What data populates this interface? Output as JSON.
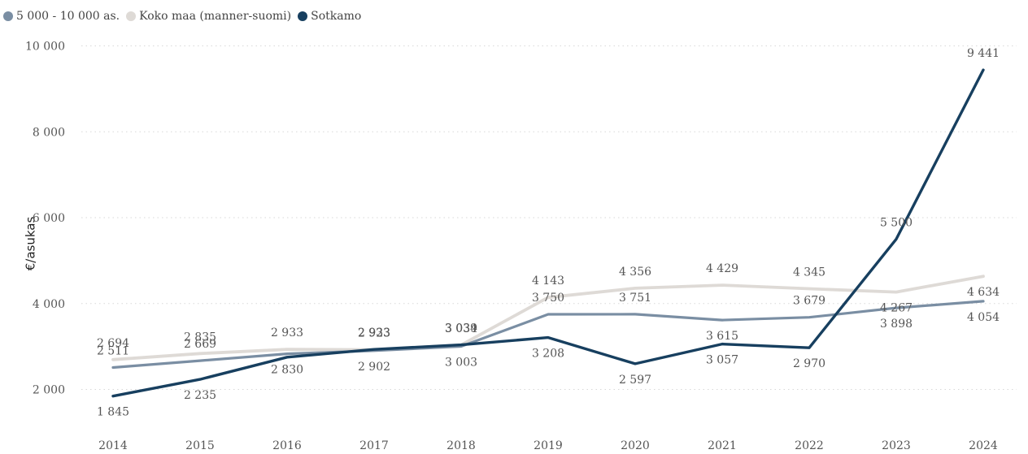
{
  "colors": {
    "series_5000_10000": "#7a8ea3",
    "series_koko_maa": "#dedad6",
    "series_sotkamo": "#173f5f",
    "grid": "#d8d8d8",
    "tick_text": "#555555",
    "label_text": "#555555"
  },
  "chart_data": {
    "type": "line",
    "ylabel": "€/asukas",
    "ylim": [
      1800,
      10000
    ],
    "yticks": [
      2000,
      4000,
      6000,
      8000,
      10000
    ],
    "ytick_labels": [
      "2 000",
      "4 000",
      "6 000",
      "8 000",
      "10 000"
    ],
    "x": [
      "2014",
      "2015",
      "2016",
      "2017",
      "2018",
      "2019",
      "2020",
      "2021",
      "2022",
      "2023",
      "2024"
    ],
    "grid": true,
    "legend_position": "top-left",
    "series": [
      {
        "name": "5 000 - 10 000 as.",
        "values": [
          2511,
          2669,
          2830,
          2902,
          3003,
          3750,
          3751,
          3615,
          3679,
          3898,
          4054
        ],
        "labels": [
          "2 511",
          "2 669",
          "2 830",
          "2 902",
          "3 003",
          "3 750",
          "3 751",
          "3 615",
          "3 679",
          "3 898",
          "4 054"
        ]
      },
      {
        "name": "Koko maa (manner-suomi)",
        "values": [
          2694,
          2835,
          2933,
          2923,
          3034,
          4143,
          4356,
          4429,
          4345,
          4267,
          4634
        ],
        "labels": [
          "2 694",
          "2 835",
          "2 933",
          "2 923",
          "3 034",
          "4 143",
          "4 356",
          "4 429",
          "4 345",
          "4 267",
          "4 634"
        ]
      },
      {
        "name": "Sotkamo",
        "values": [
          1845,
          2235,
          2750,
          2933,
          3039,
          3208,
          2597,
          3057,
          2970,
          5500,
          9441
        ],
        "labels": [
          "1 845",
          "2 235",
          "",
          "2 933",
          "3 039",
          "3 208",
          "2 597",
          "3 057",
          "2 970",
          "5 500",
          "9 441"
        ]
      }
    ]
  }
}
